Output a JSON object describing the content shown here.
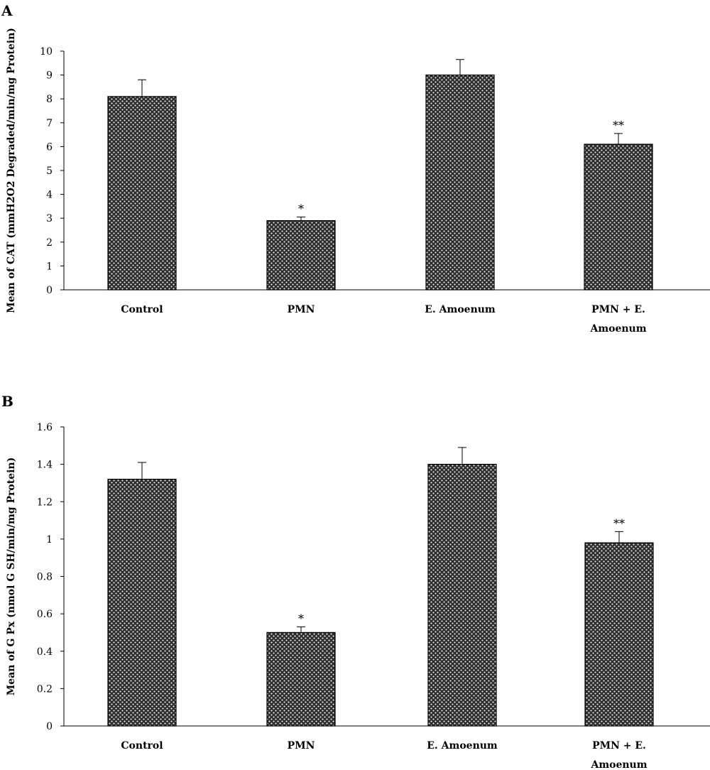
{
  "chart_data": [
    {
      "panel": "A",
      "type": "bar",
      "categories": [
        [
          "Control"
        ],
        [
          "PMN"
        ],
        [
          "E. Amoenum"
        ],
        [
          "PMN + E.",
          "Amoenum"
        ]
      ],
      "values": [
        8.1,
        2.9,
        9.0,
        6.1
      ],
      "errors": [
        0.7,
        0.15,
        0.65,
        0.45
      ],
      "annotations": [
        "",
        "*",
        "",
        "**"
      ],
      "ylabel": "Mean of CAT (mmH2O2 Degraded/min/mg Protein)",
      "ylim": [
        0,
        10
      ],
      "yticks": [
        "0",
        "1",
        "2",
        "3",
        "4",
        "5",
        "6",
        "7",
        "8",
        "9",
        "10"
      ],
      "grid": false,
      "pattern": "dotted crosshatch"
    },
    {
      "panel": "B",
      "type": "bar",
      "categories": [
        [
          "Control"
        ],
        [
          "PMN"
        ],
        [
          "E. Amoenum"
        ],
        [
          "PMN + E.",
          "Amoenum"
        ]
      ],
      "values": [
        1.32,
        0.5,
        1.4,
        0.98
      ],
      "errors": [
        0.09,
        0.03,
        0.09,
        0.06
      ],
      "annotations": [
        "",
        "*",
        "",
        "**"
      ],
      "ylabel": "Mean of G Px (nmol G SH/min/mg Protein)",
      "ylim": [
        0,
        1.6
      ],
      "yticks": [
        "0",
        "0.2",
        "0.4",
        "0.6",
        "0.8",
        "1",
        "1.2",
        "1.4",
        "1.6"
      ],
      "grid": false,
      "pattern": "dotted crosshatch"
    }
  ]
}
